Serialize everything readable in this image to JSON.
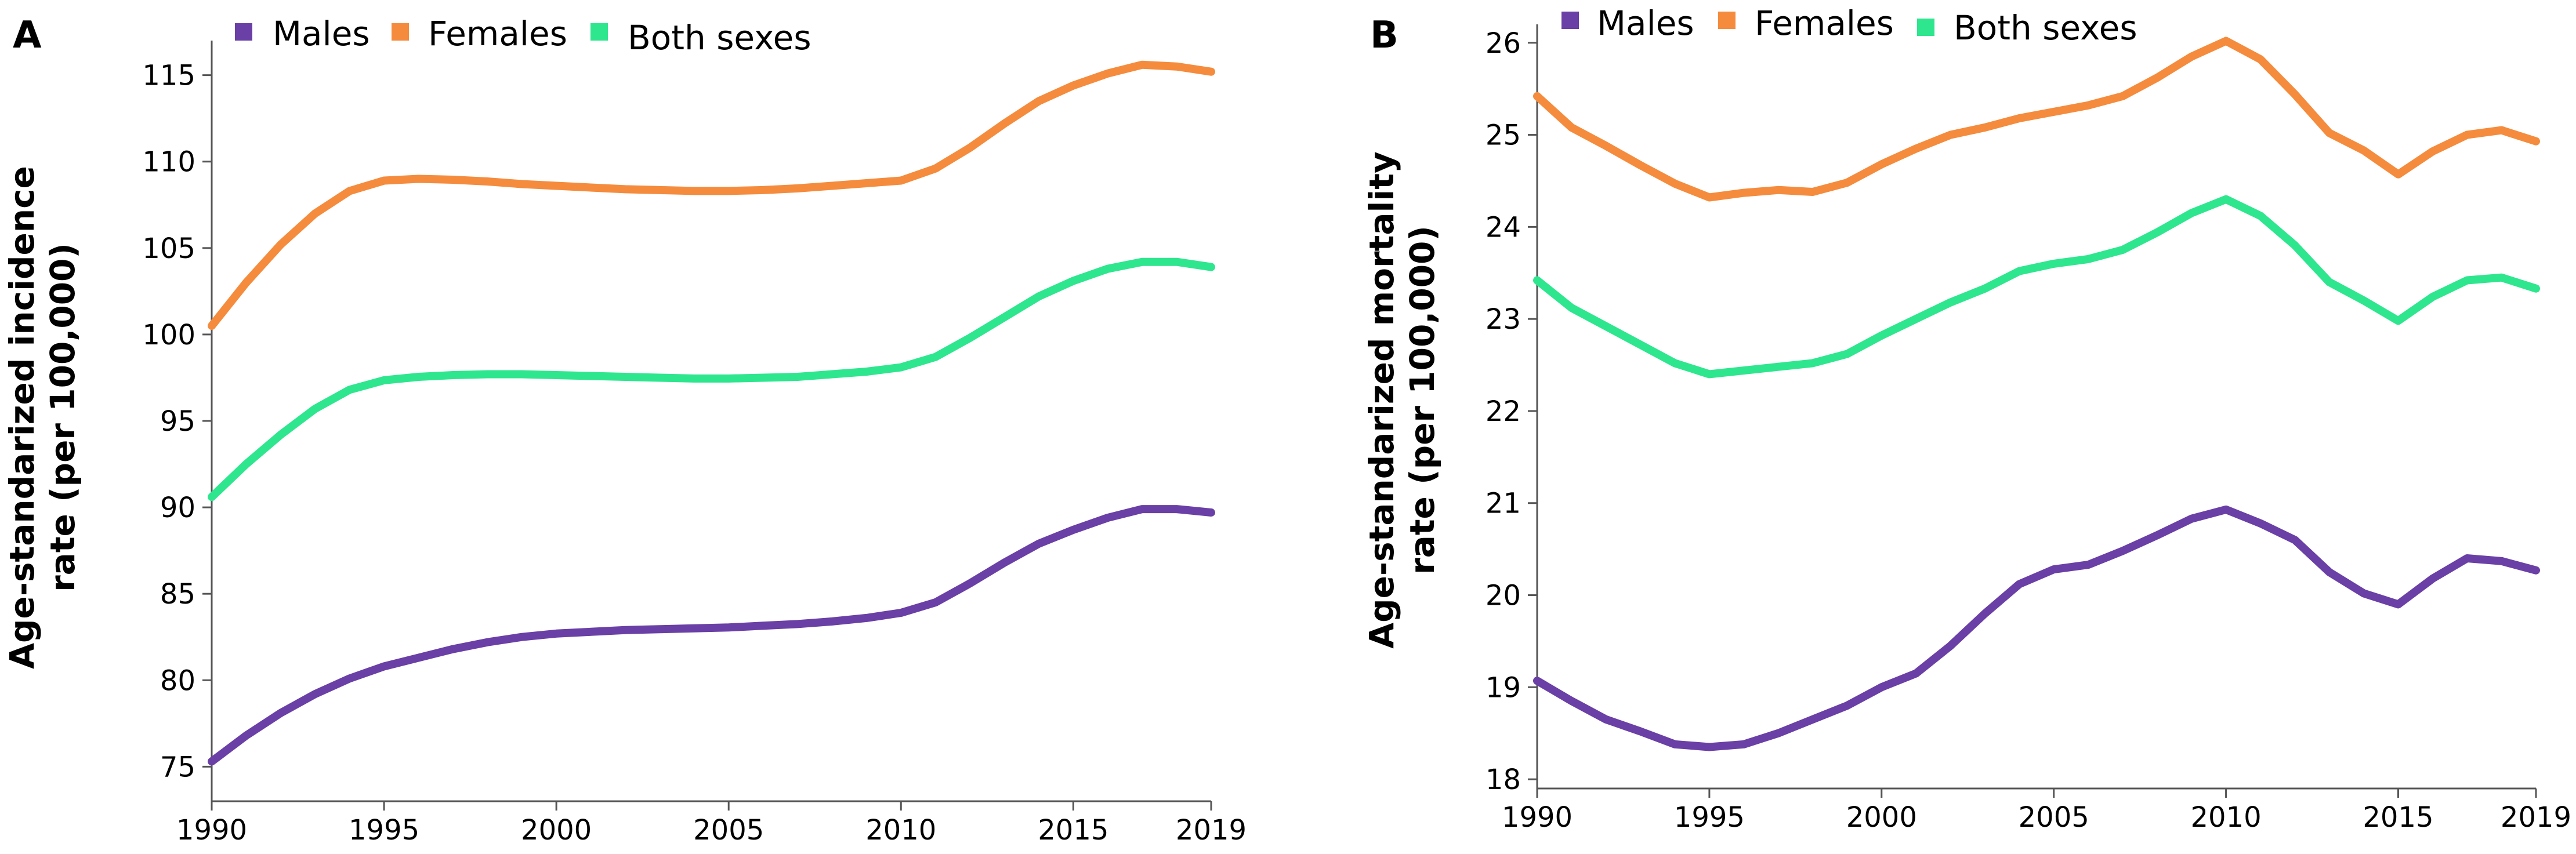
{
  "chart_data": [
    {
      "type": "line",
      "panel_label": "A",
      "title": "",
      "xlabel": "",
      "ylabel_lines": [
        "Age-standarized incidence",
        "rate (per 100,000)"
      ],
      "x": [
        1990,
        1991,
        1992,
        1993,
        1994,
        1995,
        1996,
        1997,
        1998,
        1999,
        2000,
        2001,
        2002,
        2003,
        2004,
        2005,
        2006,
        2007,
        2008,
        2009,
        2010,
        2011,
        2012,
        2013,
        2014,
        2015,
        2016,
        2017,
        2018,
        2019
      ],
      "xlim": [
        1990,
        2019
      ],
      "xticks": [
        1990,
        1995,
        2000,
        2005,
        2010,
        2015,
        2019
      ],
      "xtick_labels": [
        "1990",
        "1995",
        "2000",
        "2005",
        "2010",
        "2015",
        "2019"
      ],
      "ylim": [
        73,
        117
      ],
      "yticks": [
        75,
        80,
        85,
        90,
        95,
        100,
        105,
        110,
        115
      ],
      "ytick_labels": [
        "75",
        "80",
        "85",
        "90",
        "95",
        "100",
        "105",
        "110",
        "115"
      ],
      "legend_position": "top",
      "series": [
        {
          "name": "Males",
          "color": "#6a3fa6",
          "values": [
            75.3,
            76.8,
            78.1,
            79.2,
            80.1,
            80.8,
            81.3,
            81.8,
            82.2,
            82.5,
            82.7,
            82.8,
            82.9,
            82.95,
            83.0,
            83.05,
            83.15,
            83.25,
            83.4,
            83.6,
            83.9,
            84.5,
            85.6,
            86.8,
            87.9,
            88.7,
            89.4,
            89.9,
            89.9,
            89.7
          ]
        },
        {
          "name": "Females",
          "color": "#f58b3c",
          "values": [
            100.5,
            103.0,
            105.2,
            107.0,
            108.3,
            108.9,
            109.0,
            108.95,
            108.85,
            108.7,
            108.6,
            108.5,
            108.4,
            108.35,
            108.3,
            108.3,
            108.35,
            108.45,
            108.6,
            108.75,
            108.9,
            109.6,
            110.8,
            112.2,
            113.5,
            114.4,
            115.1,
            115.6,
            115.5,
            115.2
          ]
        },
        {
          "name": "Both sexes",
          "color": "#2ee68e",
          "values": [
            90.6,
            92.5,
            94.2,
            95.7,
            96.8,
            97.35,
            97.55,
            97.65,
            97.7,
            97.7,
            97.65,
            97.6,
            97.55,
            97.5,
            97.45,
            97.45,
            97.5,
            97.55,
            97.7,
            97.85,
            98.1,
            98.7,
            99.8,
            101.0,
            102.2,
            103.1,
            103.8,
            104.2,
            104.2,
            103.9
          ]
        }
      ]
    },
    {
      "type": "line",
      "panel_label": "B",
      "title": "",
      "xlabel": "",
      "ylabel_lines": [
        "Age-standarized mortality",
        "rate (per 100,000)"
      ],
      "x": [
        1990,
        1991,
        1992,
        1993,
        1994,
        1995,
        1996,
        1997,
        1998,
        1999,
        2000,
        2001,
        2002,
        2003,
        2004,
        2005,
        2006,
        2007,
        2008,
        2009,
        2010,
        2011,
        2012,
        2013,
        2014,
        2015,
        2016,
        2017,
        2018,
        2019
      ],
      "xlim": [
        1990,
        2019
      ],
      "xticks": [
        1990,
        1995,
        2000,
        2005,
        2010,
        2015,
        2019
      ],
      "xtick_labels": [
        "1990",
        "1995",
        "2000",
        "2005",
        "2010",
        "2015",
        "2019"
      ],
      "ylim": [
        17.9,
        26.2
      ],
      "yticks": [
        18,
        19,
        20,
        21,
        22,
        23,
        24,
        25,
        26
      ],
      "ytick_labels": [
        "18",
        "19",
        "20",
        "21",
        "22",
        "23",
        "24",
        "25",
        "26"
      ],
      "legend_position": "top",
      "series": [
        {
          "name": "Males",
          "color": "#6a3fa6",
          "values": [
            19.07,
            18.85,
            18.65,
            18.52,
            18.38,
            18.35,
            18.38,
            18.5,
            18.65,
            18.8,
            19.0,
            19.15,
            19.45,
            19.8,
            20.12,
            20.28,
            20.33,
            20.48,
            20.65,
            20.83,
            20.93,
            20.78,
            20.6,
            20.25,
            20.02,
            19.9,
            20.18,
            20.4,
            20.37,
            20.27
          ]
        },
        {
          "name": "Females",
          "color": "#f58b3c",
          "values": [
            25.42,
            25.08,
            24.88,
            24.67,
            24.47,
            24.32,
            24.37,
            24.4,
            24.38,
            24.48,
            24.68,
            24.85,
            25.0,
            25.08,
            25.18,
            25.25,
            25.32,
            25.42,
            25.62,
            25.85,
            26.02,
            25.82,
            25.44,
            25.02,
            24.83,
            24.57,
            24.82,
            25.0,
            25.05,
            24.93
          ]
        },
        {
          "name": "Both sexes",
          "color": "#2ee68e",
          "values": [
            23.42,
            23.12,
            22.92,
            22.72,
            22.52,
            22.4,
            22.44,
            22.48,
            22.52,
            22.62,
            22.82,
            23.0,
            23.18,
            23.33,
            23.52,
            23.6,
            23.65,
            23.75,
            23.94,
            24.15,
            24.3,
            24.12,
            23.8,
            23.4,
            23.2,
            22.98,
            23.24,
            23.42,
            23.45,
            23.33
          ]
        }
      ]
    }
  ]
}
